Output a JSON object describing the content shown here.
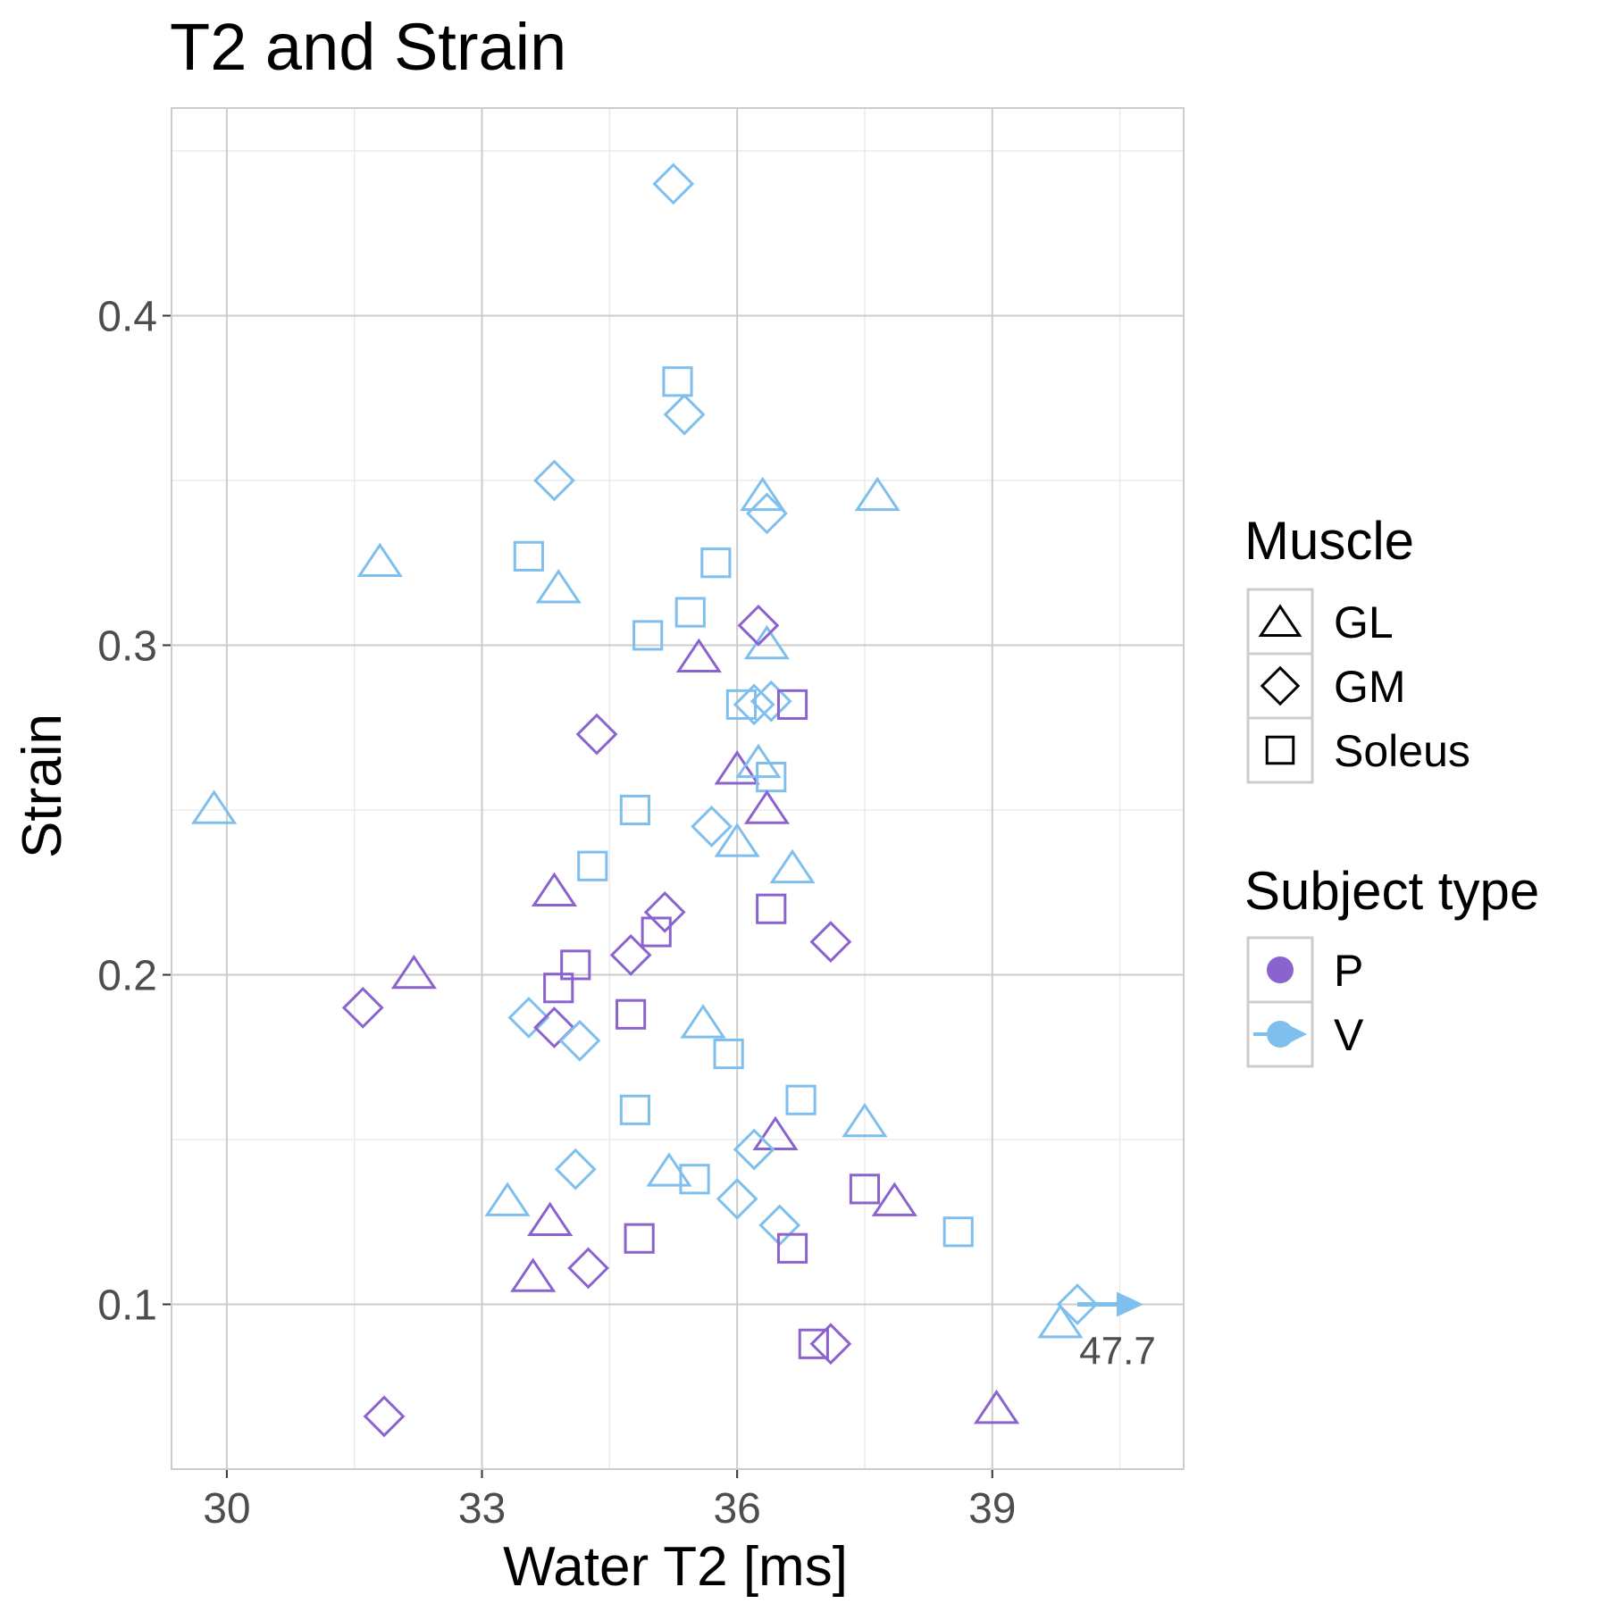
{
  "chart_data": {
    "type": "scatter",
    "title": "T2 and Strain",
    "xlabel": "Water T2 [ms]",
    "ylabel": "Strain",
    "xlim": [
      29.35,
      41.25
    ],
    "ylim": [
      0.05,
      0.463
    ],
    "x_ticks": [
      30,
      33,
      36,
      39
    ],
    "y_ticks": [
      0.1,
      0.2,
      0.3,
      0.4
    ],
    "x_tick_labels": [
      "30",
      "33",
      "36",
      "39"
    ],
    "y_tick_labels": [
      "0.1",
      "0.2",
      "0.3",
      "0.4"
    ],
    "grid": true,
    "legend_position": "right",
    "colors": {
      "P": "#8A63CF",
      "V": "#7FBFEE"
    },
    "legends": {
      "muscle": {
        "title": "Muscle",
        "items": [
          {
            "label": "GL",
            "shape": "triangle"
          },
          {
            "label": "GM",
            "shape": "diamond"
          },
          {
            "label": "Soleus",
            "shape": "square"
          }
        ]
      },
      "subject": {
        "title": "Subject type",
        "items": [
          {
            "label": "P",
            "key": "P"
          },
          {
            "label": "V",
            "key": "V"
          }
        ]
      }
    },
    "annotation": {
      "text": "47.7",
      "x": 40.0,
      "y": 0.1
    },
    "points": [
      {
        "x": 35.25,
        "y": 0.44,
        "shape": "diamond",
        "group": "V"
      },
      {
        "x": 35.3,
        "y": 0.38,
        "shape": "square",
        "group": "V"
      },
      {
        "x": 35.38,
        "y": 0.37,
        "shape": "diamond",
        "group": "V"
      },
      {
        "x": 33.85,
        "y": 0.35,
        "shape": "diamond",
        "group": "V"
      },
      {
        "x": 36.3,
        "y": 0.345,
        "shape": "triangle",
        "group": "V"
      },
      {
        "x": 36.35,
        "y": 0.34,
        "shape": "diamond",
        "group": "V"
      },
      {
        "x": 37.65,
        "y": 0.345,
        "shape": "triangle",
        "group": "V"
      },
      {
        "x": 31.8,
        "y": 0.325,
        "shape": "triangle",
        "group": "V"
      },
      {
        "x": 33.55,
        "y": 0.327,
        "shape": "square",
        "group": "V"
      },
      {
        "x": 35.75,
        "y": 0.325,
        "shape": "square",
        "group": "V"
      },
      {
        "x": 33.9,
        "y": 0.317,
        "shape": "triangle",
        "group": "V"
      },
      {
        "x": 35.45,
        "y": 0.31,
        "shape": "square",
        "group": "V"
      },
      {
        "x": 34.95,
        "y": 0.303,
        "shape": "square",
        "group": "V"
      },
      {
        "x": 36.35,
        "y": 0.3,
        "shape": "triangle",
        "group": "V"
      },
      {
        "x": 36.25,
        "y": 0.306,
        "shape": "diamond",
        "group": "P"
      },
      {
        "x": 35.55,
        "y": 0.296,
        "shape": "triangle",
        "group": "P"
      },
      {
        "x": 36.05,
        "y": 0.282,
        "shape": "square",
        "group": "V"
      },
      {
        "x": 36.2,
        "y": 0.282,
        "shape": "diamond",
        "group": "V"
      },
      {
        "x": 36.4,
        "y": 0.283,
        "shape": "diamond",
        "group": "V"
      },
      {
        "x": 36.65,
        "y": 0.282,
        "shape": "square",
        "group": "P"
      },
      {
        "x": 34.35,
        "y": 0.273,
        "shape": "diamond",
        "group": "P"
      },
      {
        "x": 36.0,
        "y": 0.262,
        "shape": "triangle",
        "group": "P"
      },
      {
        "x": 36.25,
        "y": 0.264,
        "shape": "triangle",
        "group": "V"
      },
      {
        "x": 36.4,
        "y": 0.26,
        "shape": "square",
        "group": "V"
      },
      {
        "x": 36.35,
        "y": 0.25,
        "shape": "triangle",
        "group": "P"
      },
      {
        "x": 29.85,
        "y": 0.25,
        "shape": "triangle",
        "group": "V"
      },
      {
        "x": 34.8,
        "y": 0.25,
        "shape": "square",
        "group": "V"
      },
      {
        "x": 35.7,
        "y": 0.245,
        "shape": "diamond",
        "group": "V"
      },
      {
        "x": 36.0,
        "y": 0.24,
        "shape": "triangle",
        "group": "V"
      },
      {
        "x": 34.3,
        "y": 0.233,
        "shape": "square",
        "group": "V"
      },
      {
        "x": 36.65,
        "y": 0.232,
        "shape": "triangle",
        "group": "V"
      },
      {
        "x": 33.85,
        "y": 0.225,
        "shape": "triangle",
        "group": "P"
      },
      {
        "x": 36.4,
        "y": 0.22,
        "shape": "square",
        "group": "P"
      },
      {
        "x": 35.15,
        "y": 0.219,
        "shape": "diamond",
        "group": "P"
      },
      {
        "x": 35.05,
        "y": 0.213,
        "shape": "square",
        "group": "P"
      },
      {
        "x": 37.1,
        "y": 0.21,
        "shape": "diamond",
        "group": "P"
      },
      {
        "x": 34.75,
        "y": 0.206,
        "shape": "diamond",
        "group": "P"
      },
      {
        "x": 34.1,
        "y": 0.203,
        "shape": "square",
        "group": "P"
      },
      {
        "x": 32.2,
        "y": 0.2,
        "shape": "triangle",
        "group": "P"
      },
      {
        "x": 33.9,
        "y": 0.196,
        "shape": "square",
        "group": "P"
      },
      {
        "x": 31.6,
        "y": 0.19,
        "shape": "diamond",
        "group": "P"
      },
      {
        "x": 33.55,
        "y": 0.187,
        "shape": "diamond",
        "group": "V"
      },
      {
        "x": 35.6,
        "y": 0.185,
        "shape": "triangle",
        "group": "V"
      },
      {
        "x": 34.75,
        "y": 0.188,
        "shape": "square",
        "group": "P"
      },
      {
        "x": 33.85,
        "y": 0.184,
        "shape": "diamond",
        "group": "P"
      },
      {
        "x": 34.15,
        "y": 0.18,
        "shape": "diamond",
        "group": "V"
      },
      {
        "x": 35.9,
        "y": 0.176,
        "shape": "square",
        "group": "V"
      },
      {
        "x": 36.75,
        "y": 0.162,
        "shape": "square",
        "group": "V"
      },
      {
        "x": 34.8,
        "y": 0.159,
        "shape": "square",
        "group": "V"
      },
      {
        "x": 37.5,
        "y": 0.155,
        "shape": "triangle",
        "group": "V"
      },
      {
        "x": 36.45,
        "y": 0.151,
        "shape": "triangle",
        "group": "P"
      },
      {
        "x": 36.2,
        "y": 0.147,
        "shape": "diamond",
        "group": "V"
      },
      {
        "x": 35.2,
        "y": 0.14,
        "shape": "triangle",
        "group": "V"
      },
      {
        "x": 34.1,
        "y": 0.141,
        "shape": "diamond",
        "group": "V"
      },
      {
        "x": 35.5,
        "y": 0.138,
        "shape": "square",
        "group": "V"
      },
      {
        "x": 37.5,
        "y": 0.135,
        "shape": "square",
        "group": "P"
      },
      {
        "x": 37.85,
        "y": 0.131,
        "shape": "triangle",
        "group": "P"
      },
      {
        "x": 33.3,
        "y": 0.131,
        "shape": "triangle",
        "group": "V"
      },
      {
        "x": 36.0,
        "y": 0.132,
        "shape": "diamond",
        "group": "V"
      },
      {
        "x": 33.8,
        "y": 0.125,
        "shape": "triangle",
        "group": "P"
      },
      {
        "x": 36.5,
        "y": 0.124,
        "shape": "diamond",
        "group": "V"
      },
      {
        "x": 38.6,
        "y": 0.122,
        "shape": "square",
        "group": "V"
      },
      {
        "x": 34.85,
        "y": 0.12,
        "shape": "square",
        "group": "P"
      },
      {
        "x": 36.65,
        "y": 0.117,
        "shape": "square",
        "group": "P"
      },
      {
        "x": 33.6,
        "y": 0.108,
        "shape": "triangle",
        "group": "P"
      },
      {
        "x": 34.25,
        "y": 0.111,
        "shape": "diamond",
        "group": "P"
      },
      {
        "x": 40.0,
        "y": 0.1,
        "shape": "diamond",
        "group": "V"
      },
      {
        "x": 39.8,
        "y": 0.094,
        "shape": "triangle",
        "group": "V"
      },
      {
        "x": 36.9,
        "y": 0.088,
        "shape": "square",
        "group": "P"
      },
      {
        "x": 37.1,
        "y": 0.088,
        "shape": "diamond",
        "group": "P"
      },
      {
        "x": 39.05,
        "y": 0.068,
        "shape": "triangle",
        "group": "P"
      },
      {
        "x": 31.85,
        "y": 0.066,
        "shape": "diamond",
        "group": "P"
      }
    ]
  }
}
